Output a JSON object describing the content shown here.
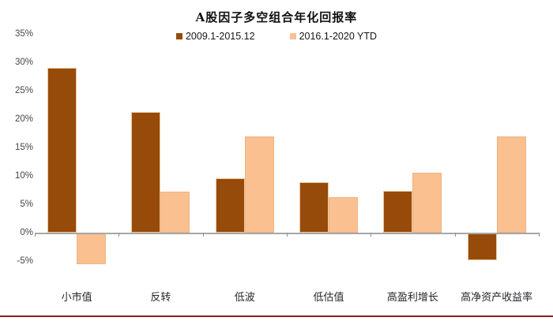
{
  "chart_data": {
    "type": "bar",
    "title": "A股因子多空组合年化回报率",
    "xlabel": "",
    "ylabel": "",
    "units": "%",
    "categories": [
      "小市值",
      "反转",
      "低波",
      "低估值",
      "高盈利增长",
      "高净资产收益率"
    ],
    "series": [
      {
        "name": "2009.1-2015.12",
        "color": "#974b0a",
        "values": [
          29.0,
          21.2,
          9.6,
          8.9,
          7.3,
          -4.7
        ]
      },
      {
        "name": "2016.1-2020 YTD",
        "color": "#fac090",
        "values": [
          -5.4,
          7.2,
          17.0,
          6.2,
          10.5,
          17.0
        ]
      }
    ],
    "yticks": [
      35,
      30,
      25,
      20,
      15,
      10,
      5,
      0,
      -5
    ],
    "ytick_labels": [
      "35%",
      "30%",
      "25%",
      "20%",
      "15%",
      "10%",
      "5%",
      "0%",
      "-5%"
    ],
    "ylim": [
      -7.5,
      35
    ],
    "grid": false,
    "legend_position": "top-center",
    "accent_rule_color": "#8b2026"
  }
}
